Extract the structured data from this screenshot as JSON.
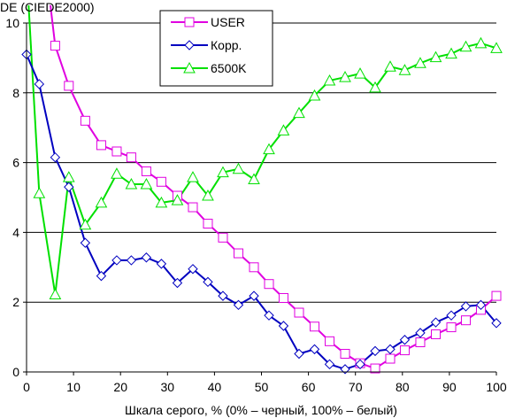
{
  "chart_data": {
    "type": "line",
    "title": "",
    "ylabel": "DE (CIEDE2000)",
    "xlabel": "Шкала серого, % (0% – черный, 100% – белый)",
    "xlim": [
      0,
      100
    ],
    "ylim": [
      0,
      10
    ],
    "xticks": [
      0,
      10,
      20,
      30,
      40,
      50,
      60,
      70,
      80,
      90,
      100
    ],
    "yticks": [
      0,
      2,
      4,
      6,
      8,
      10
    ],
    "grid": "horizontal",
    "legend_position": "top-center",
    "series": [
      {
        "name": "USER",
        "color": "#e000e0",
        "marker": "square",
        "x": [
          6.1,
          9.0,
          12.5,
          15.9,
          19.2,
          22.3,
          25.5,
          28.7,
          32.1,
          35.4,
          38.6,
          41.8,
          45.1,
          48.4,
          51.6,
          54.7,
          58.0,
          61.3,
          64.5,
          67.8,
          71.0,
          74.2,
          77.4,
          80.5,
          83.8,
          87.1,
          90.4,
          93.5,
          96.7,
          100.0
        ],
        "y": [
          9.35,
          8.2,
          7.2,
          6.5,
          6.32,
          6.15,
          5.75,
          5.45,
          5.05,
          4.72,
          4.25,
          3.85,
          3.4,
          3.0,
          2.52,
          2.12,
          1.7,
          1.3,
          0.88,
          0.52,
          0.25,
          0.1,
          0.38,
          0.62,
          0.85,
          1.08,
          1.28,
          1.48,
          1.78,
          2.18
        ]
      },
      {
        "name": "Корр.",
        "color": "#0000c0",
        "marker": "diamond",
        "x": [
          0.0,
          2.7,
          6.1,
          9.0,
          12.5,
          15.9,
          19.2,
          22.3,
          25.5,
          28.7,
          32.1,
          35.4,
          38.6,
          41.8,
          45.1,
          48.4,
          51.6,
          54.7,
          58.0,
          61.3,
          64.5,
          67.8,
          71.0,
          74.2,
          77.4,
          80.5,
          83.8,
          87.1,
          90.4,
          93.5,
          96.7,
          100.0
        ],
        "y": [
          9.1,
          8.25,
          6.15,
          5.3,
          3.7,
          2.75,
          3.2,
          3.2,
          3.28,
          3.1,
          2.55,
          2.95,
          2.58,
          2.18,
          1.92,
          2.18,
          1.62,
          1.32,
          0.52,
          0.65,
          0.22,
          0.08,
          0.22,
          0.6,
          0.65,
          0.92,
          1.12,
          1.42,
          1.62,
          1.88,
          1.92,
          1.4
        ]
      },
      {
        "name": "6500K",
        "color": "#00e000",
        "marker": "triangle",
        "x": [
          2.7,
          6.1,
          9.0,
          12.5,
          15.9,
          19.2,
          22.3,
          25.5,
          28.7,
          32.1,
          35.4,
          38.6,
          41.8,
          45.1,
          48.4,
          51.6,
          54.7,
          58.0,
          61.3,
          64.5,
          67.8,
          71.0,
          74.2,
          77.4,
          80.5,
          83.8,
          87.1,
          90.4,
          93.5,
          96.7,
          100.0
        ],
        "y": [
          5.12,
          2.22,
          5.58,
          4.22,
          4.85,
          5.68,
          5.38,
          5.38,
          4.85,
          4.92,
          5.58,
          5.05,
          5.72,
          5.82,
          5.52,
          6.38,
          6.92,
          7.42,
          7.92,
          8.35,
          8.45,
          8.55,
          8.15,
          8.75,
          8.65,
          8.85,
          9.02,
          9.12,
          9.32,
          9.42,
          9.28
        ]
      }
    ],
    "line_segments_offplot": [
      {
        "series": "USER",
        "x": [
          5.0,
          6.1
        ],
        "y": [
          10.6,
          9.35
        ]
      },
      {
        "series": "6500K",
        "x": [
          0.4,
          2.7
        ],
        "y": [
          10.6,
          5.12
        ]
      }
    ]
  }
}
